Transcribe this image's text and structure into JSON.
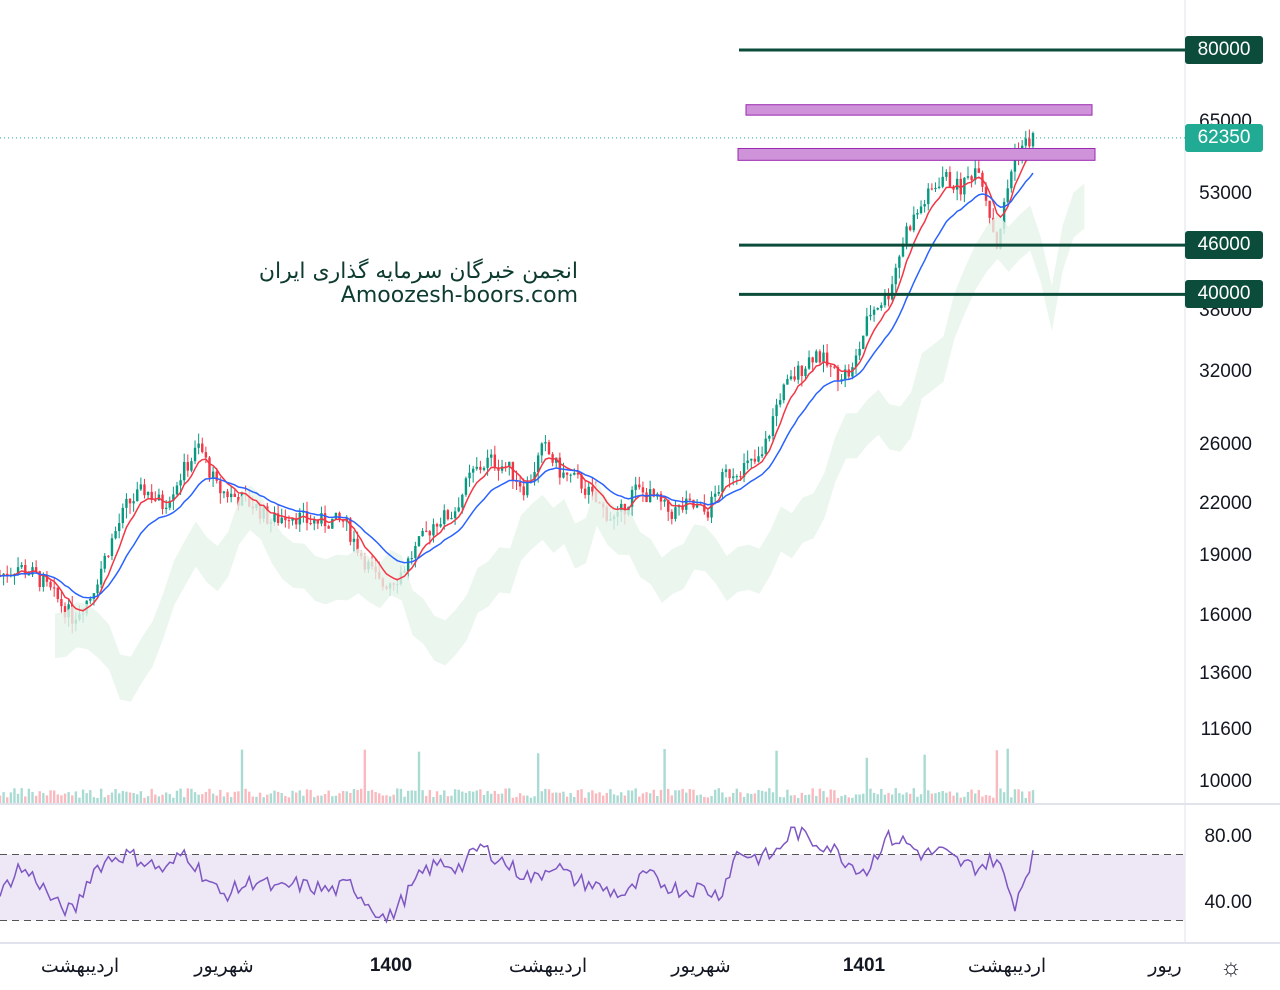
{
  "chart_data": {
    "type": "candlestick",
    "scale": "log",
    "price_ticks": [
      65000,
      53000,
      38000,
      32000,
      26000,
      22000,
      19000,
      16000,
      13600,
      11600,
      10000
    ],
    "price_labels": {
      "last": "62350",
      "levels": [
        "80000",
        "46000",
        "40000"
      ]
    },
    "last_price": 62350,
    "levels": [
      80000,
      46000,
      40000
    ],
    "zones": [
      [
        66500,
        68500
      ],
      [
        58500,
        60500
      ]
    ],
    "x_labels": [
      {
        "t": "اردیبهشت",
        "bold": false
      },
      {
        "t": "شهریور",
        "bold": false
      },
      {
        "t": "1400",
        "bold": true
      },
      {
        "t": "اردیبهشت",
        "bold": false
      },
      {
        "t": "شهریور",
        "bold": false
      },
      {
        "t": "1401",
        "bold": true
      },
      {
        "t": "اردیبهشت",
        "bold": false
      },
      {
        "t": "ریور",
        "bold": false
      }
    ],
    "price_path": [
      18000,
      18500,
      18000,
      17000,
      16000,
      17000,
      19500,
      22000,
      23000,
      22000,
      24000,
      26000,
      23000,
      22500,
      22000,
      21000,
      21500,
      21000,
      21000,
      21000,
      19000,
      17500,
      18000,
      19500,
      21000,
      21500,
      24000,
      25000,
      24500,
      23000,
      26000,
      24000,
      23500,
      22000,
      21000,
      23000,
      22500,
      21500,
      22000,
      21500,
      24000,
      24500,
      25000,
      30000,
      32000,
      34000,
      32000,
      32000,
      38000,
      40000,
      48000,
      52000,
      56000,
      54000,
      58000,
      46000,
      60000,
      62350
    ],
    "rsi": {
      "ticks": [
        "80.00",
        "40.00"
      ],
      "upper": 70,
      "lower": 30,
      "values": [
        45,
        62,
        55,
        40,
        35,
        60,
        68,
        70,
        65,
        60,
        72,
        58,
        45,
        50,
        55,
        48,
        52,
        50,
        48,
        52,
        40,
        30,
        45,
        60,
        65,
        62,
        75,
        68,
        60,
        55,
        65,
        55,
        52,
        48,
        45,
        58,
        52,
        48,
        50,
        45,
        72,
        68,
        70,
        85,
        78,
        75,
        65,
        60,
        80,
        78,
        70,
        72,
        65,
        62,
        68,
        40,
        70
      ]
    },
    "colors": {
      "up": "#089981",
      "down": "#f23645",
      "level": "#0b4d3a",
      "zone": "#ce93d8",
      "last": "#22ab94",
      "ema_fast": "#f23645",
      "ema_slow": "#2962ff",
      "cloud": "#e6f4ea",
      "cloud_red": "#fde7e9",
      "rsi": "#7e57c2",
      "rsi_bg": "#ede7f6"
    }
  },
  "watermark": {
    "line1": "انجمن خبرگان سرمایه گذاری ایران",
    "line2": "Amoozesh-boors.com"
  },
  "settings_icon": "sun-gear-icon"
}
